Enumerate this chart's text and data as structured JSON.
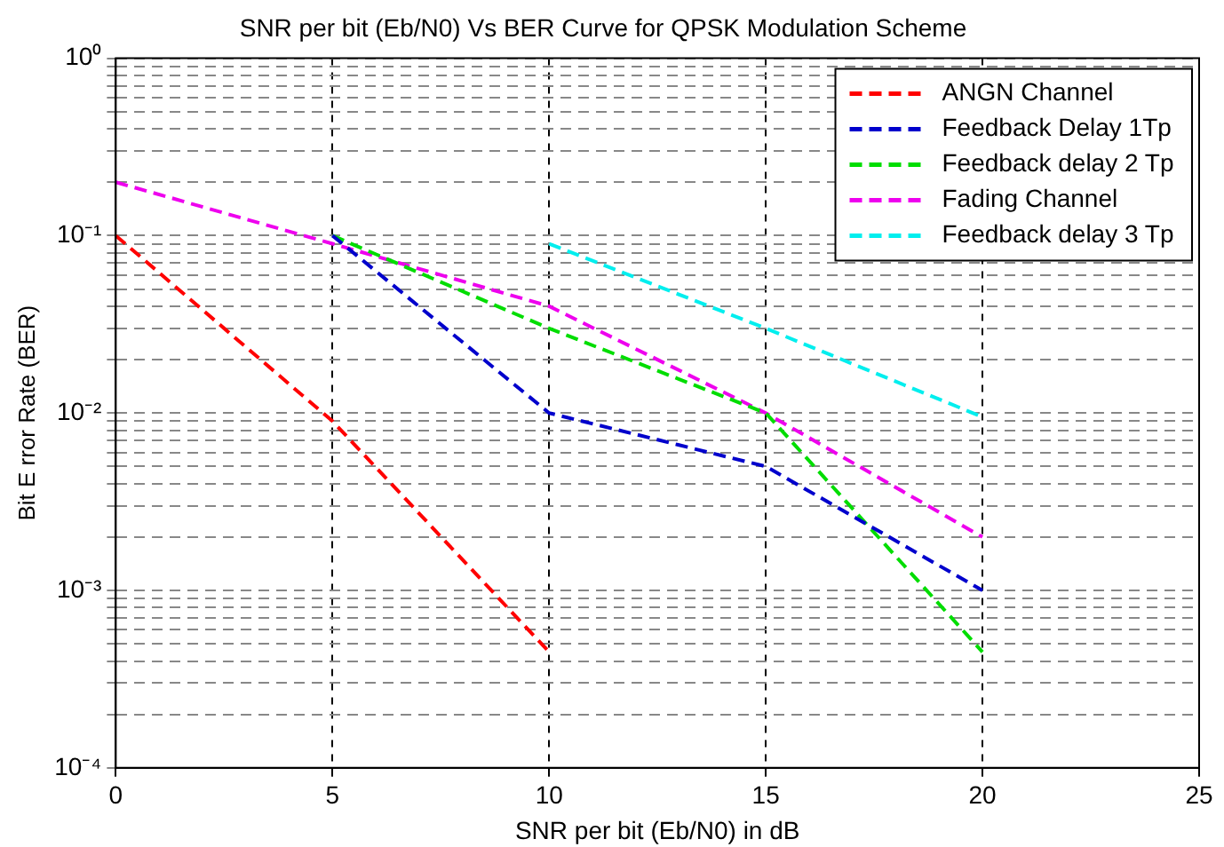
{
  "chart_data": {
    "type": "line",
    "title": "SNR per bit (Eb/N0) Vs BER Curve for QPSK Modulation Scheme",
    "xlabel": "SNR per bit (Eb/N0) in dB",
    "ylabel": "Bit E rror Rate (BER)",
    "series": [
      {
        "name": "ANGN Channel",
        "color": "#ff0000",
        "x": [
          0,
          5,
          10
        ],
        "values": [
          0.1,
          0.009,
          0.00045
        ]
      },
      {
        "name": "Feedback Delay 1Tp",
        "color": "#0000cc",
        "x": [
          5,
          10,
          15,
          20
        ],
        "values": [
          0.1,
          0.01,
          0.005,
          0.001
        ]
      },
      {
        "name": "Feedback delay 2 Tp",
        "color": "#00dd00",
        "x": [
          5,
          10,
          15,
          20
        ],
        "values": [
          0.1,
          0.03,
          0.01,
          0.00045
        ]
      },
      {
        "name": "Fading Channel",
        "color": "#ee00ee",
        "x": [
          0,
          5,
          10,
          15,
          20
        ],
        "values": [
          0.2,
          0.09,
          0.04,
          0.01,
          0.002
        ]
      },
      {
        "name": "Feedback delay 3 Tp",
        "color": "#00eeee",
        "x": [
          10,
          15,
          20
        ],
        "values": [
          0.09,
          0.03,
          0.0095
        ]
      }
    ],
    "xlim": [
      0,
      25
    ],
    "xticks": [
      0,
      5,
      10,
      15,
      20,
      25
    ],
    "ylim": [
      0.0001,
      1
    ],
    "yticks": [
      {
        "value": 0.0001,
        "label": "10⁻⁴"
      },
      {
        "value": 0.0002,
        "label": null
      },
      {
        "value": 0.0003,
        "label": null
      },
      {
        "value": 0.0004,
        "label": null
      },
      {
        "value": 0.0005,
        "label": null
      },
      {
        "value": 0.0006,
        "label": null
      },
      {
        "value": 0.0007,
        "label": null
      },
      {
        "value": 0.0008,
        "label": null
      },
      {
        "value": 0.0009,
        "label": null
      },
      {
        "value": 0.001,
        "label": "10⁻³"
      },
      {
        "value": 0.002,
        "label": null
      },
      {
        "value": 0.003,
        "label": null
      },
      {
        "value": 0.004,
        "label": null
      },
      {
        "value": 0.005,
        "label": null
      },
      {
        "value": 0.006,
        "label": null
      },
      {
        "value": 0.007,
        "label": null
      },
      {
        "value": 0.008,
        "label": null
      },
      {
        "value": 0.009,
        "label": null
      },
      {
        "value": 0.01,
        "label": "10⁻²"
      },
      {
        "value": 0.02,
        "label": null
      },
      {
        "value": 0.03,
        "label": null
      },
      {
        "value": 0.04,
        "label": null
      },
      {
        "value": 0.05,
        "label": null
      },
      {
        "value": 0.06,
        "label": null
      },
      {
        "value": 0.07,
        "label": null
      },
      {
        "value": 0.08,
        "label": null
      },
      {
        "value": 0.09,
        "label": null
      },
      {
        "value": 0.1,
        "label": "10⁻¹"
      },
      {
        "value": 0.2,
        "label": null
      },
      {
        "value": 0.3,
        "label": null
      },
      {
        "value": 0.4,
        "label": null
      },
      {
        "value": 0.5,
        "label": null
      },
      {
        "value": 0.6,
        "label": null
      },
      {
        "value": 0.7,
        "label": null
      },
      {
        "value": 0.8,
        "label": null
      },
      {
        "value": 0.9,
        "label": null
      },
      {
        "value": 1,
        "label": "10⁰"
      }
    ],
    "log": "y",
    "grid": true,
    "legend": "top right",
    "marker": "none",
    "line_style": "dashed"
  }
}
